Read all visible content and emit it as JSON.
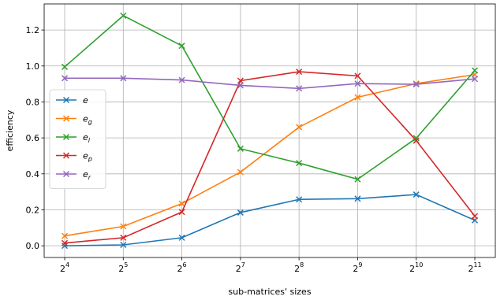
{
  "chart_data": {
    "type": "line",
    "xlabel": "sub-matrices' sizes",
    "ylabel": "efficiency",
    "x": [
      4,
      5,
      6,
      7,
      8,
      9,
      10,
      11
    ],
    "x_tick_base": "2",
    "y_ticks": [
      "0.0",
      "0.2",
      "0.4",
      "0.6",
      "0.8",
      "1.0",
      "1.2"
    ],
    "ylim": [
      -0.065,
      1.345
    ],
    "grid": true,
    "legend_position": "center-left",
    "marker": "x",
    "series": [
      {
        "name": "e",
        "name_base": "e",
        "name_sub": "",
        "color": "#1f77b4",
        "values": [
          0.0,
          0.005,
          0.045,
          0.185,
          0.258,
          0.262,
          0.285,
          0.142
        ]
      },
      {
        "name": "eg",
        "name_base": "e",
        "name_sub": "g",
        "color": "#ff7f0e",
        "values": [
          0.055,
          0.108,
          0.235,
          0.41,
          0.66,
          0.826,
          0.902,
          0.952
        ]
      },
      {
        "name": "el",
        "name_base": "e",
        "name_sub": "l",
        "color": "#2ca02c",
        "values": [
          0.995,
          1.28,
          1.112,
          0.54,
          0.46,
          0.37,
          0.598,
          0.975
        ]
      },
      {
        "name": "ep",
        "name_base": "e",
        "name_sub": "p",
        "color": "#d62728",
        "values": [
          0.015,
          0.045,
          0.188,
          0.918,
          0.968,
          0.945,
          0.585,
          0.165
        ]
      },
      {
        "name": "er",
        "name_base": "e",
        "name_sub": "r",
        "color": "#9467bd",
        "values": [
          0.932,
          0.932,
          0.922,
          0.892,
          0.875,
          0.902,
          0.898,
          0.928
        ]
      }
    ]
  }
}
